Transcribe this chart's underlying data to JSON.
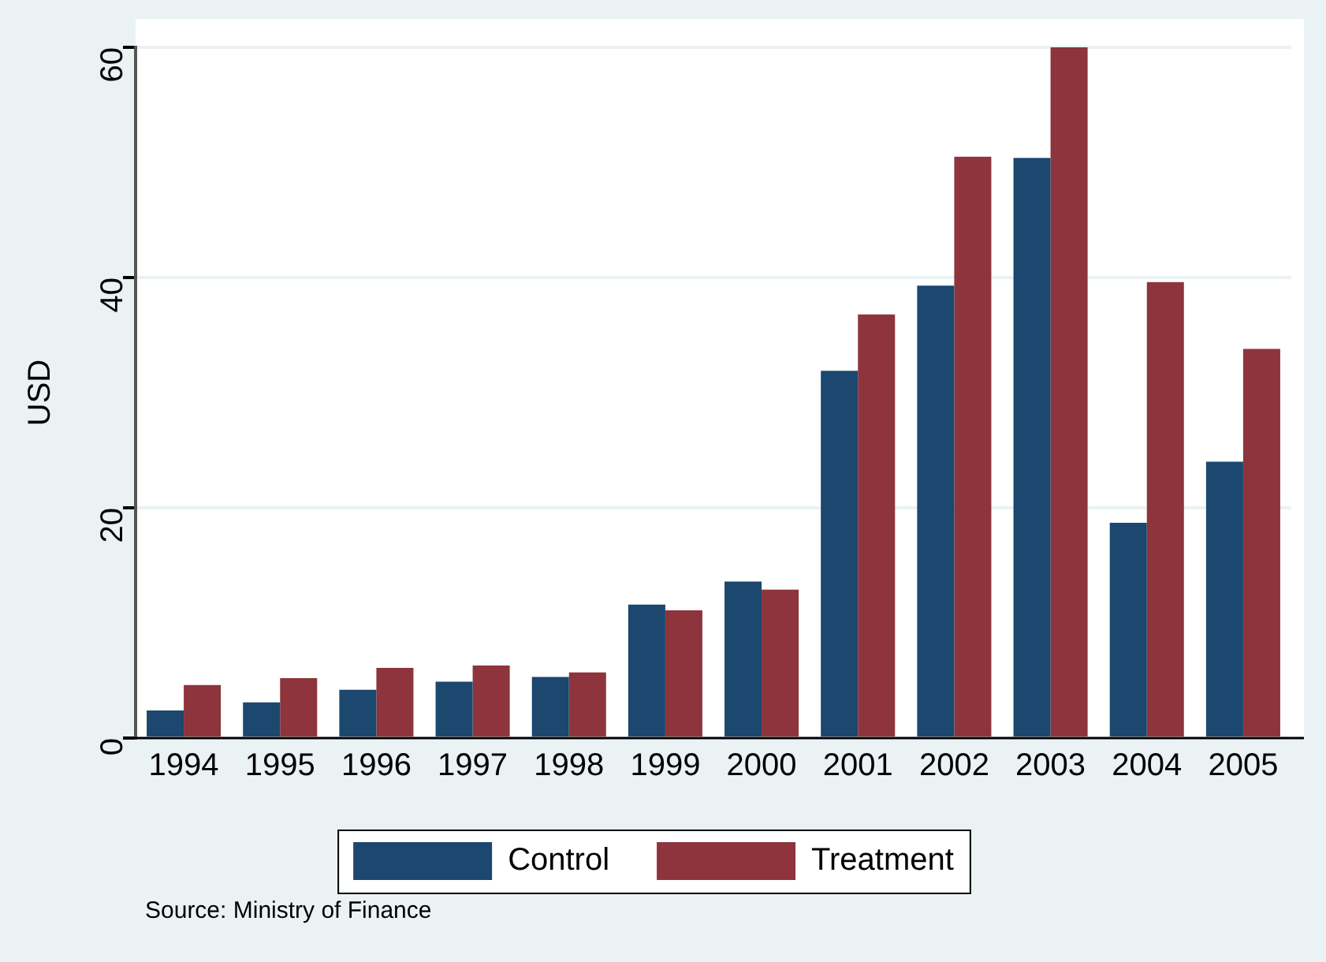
{
  "chart_data": {
    "type": "bar",
    "ylabel": "USD",
    "categories": [
      "1994",
      "1995",
      "1996",
      "1997",
      "1998",
      "1999",
      "2000",
      "2001",
      "2002",
      "2003",
      "2004",
      "2005"
    ],
    "series": [
      {
        "name": "Control",
        "color": "#1c476e",
        "values": [
          2.4,
          3.1,
          4.2,
          4.9,
          5.3,
          11.6,
          13.6,
          31.9,
          39.3,
          50.4,
          18.7,
          24.0
        ]
      },
      {
        "name": "Treatment",
        "color": "#8e343d",
        "values": [
          4.6,
          5.2,
          6.1,
          6.3,
          5.7,
          11.1,
          12.9,
          36.8,
          50.5,
          60.0,
          39.6,
          33.8
        ]
      }
    ],
    "ylim": [
      0,
      60
    ],
    "yticks": [
      0,
      20,
      40,
      60
    ],
    "grid": "y",
    "legend": "bottom",
    "annotations": [
      "Source: Ministry of Finance"
    ]
  }
}
